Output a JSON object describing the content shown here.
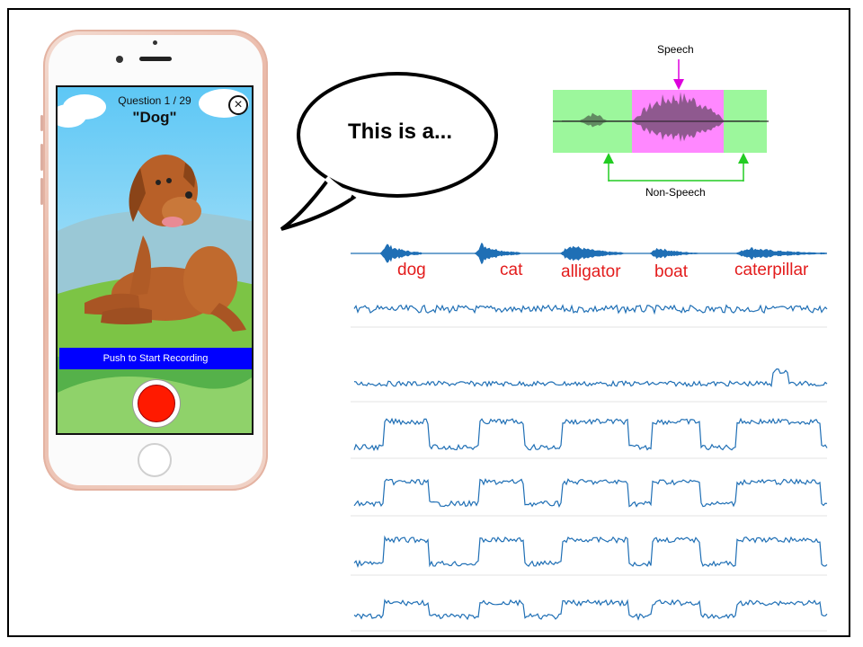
{
  "phone": {
    "question_counter": "Question 1 / 29",
    "question_word": "\"Dog\"",
    "close_glyph": "×",
    "record_label": "Push to Start Recording"
  },
  "speech_bubble": {
    "text": "This is a..."
  },
  "vad_diagram": {
    "speech_label": "Speech",
    "non_speech_label": "Non-Speech",
    "colors": {
      "speech": "#ff88ff",
      "non_speech": "#9cf79c",
      "arrow_speech": "#dd00dd",
      "arrow_non_speech": "#22cc22"
    }
  },
  "waveform_words": [
    "dog",
    "cat",
    "alligator",
    "boat",
    "caterpillar"
  ],
  "colors": {
    "trace": "#1f6fb5",
    "word_label": "#e31c1c",
    "record_bar": "#0000ff",
    "record_button": "#ff1a00"
  }
}
